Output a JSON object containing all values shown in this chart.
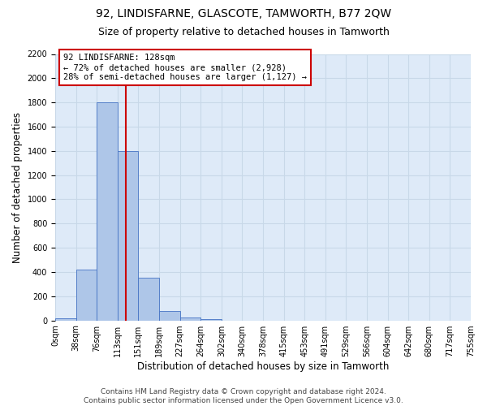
{
  "title": "92, LINDISFARNE, GLASCOTE, TAMWORTH, B77 2QW",
  "subtitle": "Size of property relative to detached houses in Tamworth",
  "xlabel": "Distribution of detached houses by size in Tamworth",
  "ylabel": "Number of detached properties",
  "footer_line1": "Contains HM Land Registry data © Crown copyright and database right 2024.",
  "footer_line2": "Contains public sector information licensed under the Open Government Licence v3.0.",
  "bin_labels": [
    "0sqm",
    "38sqm",
    "76sqm",
    "113sqm",
    "151sqm",
    "189sqm",
    "227sqm",
    "264sqm",
    "302sqm",
    "340sqm",
    "378sqm",
    "415sqm",
    "453sqm",
    "491sqm",
    "529sqm",
    "566sqm",
    "604sqm",
    "642sqm",
    "680sqm",
    "717sqm",
    "755sqm"
  ],
  "bar_values": [
    15,
    420,
    1800,
    1400,
    350,
    80,
    25,
    10,
    0,
    0,
    0,
    0,
    0,
    0,
    0,
    0,
    0,
    0,
    0,
    0
  ],
  "bar_color": "#aec6e8",
  "bar_edge_color": "#4472c4",
  "grid_color": "#c8d8e8",
  "background_color": "#deeaf8",
  "vline_color": "#cc0000",
  "annotation_text": "92 LINDISFARNE: 128sqm\n← 72% of detached houses are smaller (2,928)\n28% of semi-detached houses are larger (1,127) →",
  "annotation_box_color": "#ffffff",
  "annotation_box_edge": "#cc0000",
  "ylim": [
    0,
    2200
  ],
  "yticks": [
    0,
    200,
    400,
    600,
    800,
    1000,
    1200,
    1400,
    1600,
    1800,
    2000,
    2200
  ],
  "title_fontsize": 10,
  "subtitle_fontsize": 9,
  "axis_label_fontsize": 8.5,
  "tick_fontsize": 7,
  "annotation_fontsize": 7.5,
  "footer_fontsize": 6.5
}
